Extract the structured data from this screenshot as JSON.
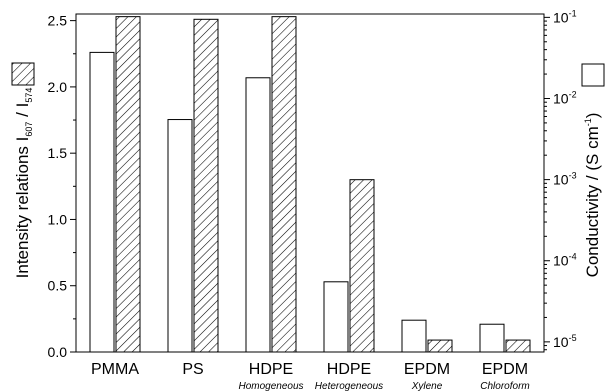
{
  "chart_data": {
    "type": "bar",
    "categories": [
      "PMMA",
      "PS",
      "HDPE",
      "HDPE",
      "EPDM",
      "EPDM"
    ],
    "subcategories": [
      "",
      "",
      "Homogeneous",
      "Heterogeneous",
      "Xylene",
      "Chloroform"
    ],
    "series": [
      {
        "axis": "right",
        "style": "open",
        "values": [
          0.037,
          0.0055,
          0.018,
          5.5e-05,
          1.85e-05,
          1.65e-05
        ]
      },
      {
        "axis": "left",
        "style": "hatched",
        "values": [
          2.53,
          2.51,
          2.53,
          1.3,
          0.09,
          0.09
        ]
      }
    ],
    "y_left": {
      "label": "Intensity relations I",
      "label_sub1": "607",
      "label_mid": " / I",
      "label_sub2": "574",
      "range": [
        0,
        2.55
      ],
      "ticks": [
        {
          "v": 0.0,
          "t": "0.0"
        },
        {
          "v": 0.5,
          "t": "0.5"
        },
        {
          "v": 1.0,
          "t": "1.0"
        },
        {
          "v": 1.5,
          "t": "1.5"
        },
        {
          "v": 2.0,
          "t": "2.0"
        },
        {
          "v": 2.5,
          "t": "2.5"
        }
      ]
    },
    "y_right": {
      "label": "Conductivity / (S cm",
      "label_sup": "-1",
      "label_end": ")",
      "scale": "log",
      "range": [
        7.5e-06,
        0.11
      ],
      "ticks": [
        {
          "v": 0.1,
          "exp": "-1"
        },
        {
          "v": 0.01,
          "exp": "-2"
        },
        {
          "v": 0.001,
          "exp": "-3"
        },
        {
          "v": 0.0001,
          "exp": "-4"
        },
        {
          "v": 1e-05,
          "exp": "-5"
        }
      ],
      "tick_base": "10"
    },
    "grid": false,
    "legend": "hatched swatch beside left axis label, open swatch beside right axis label"
  }
}
